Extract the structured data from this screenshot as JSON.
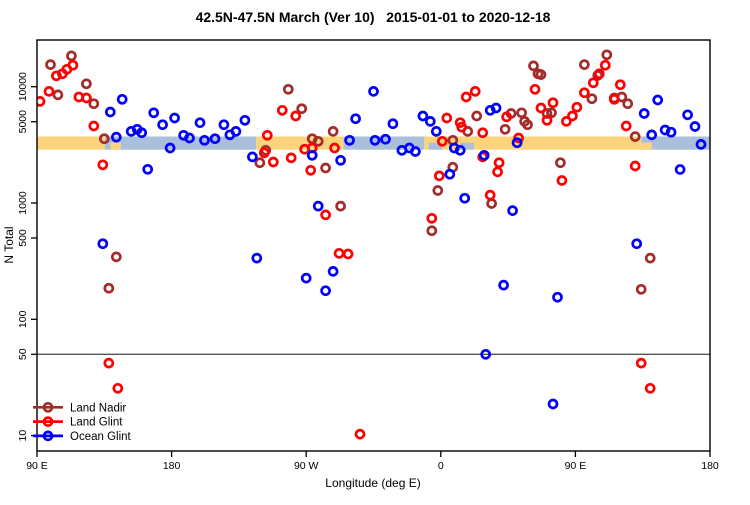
{
  "title": "42.5N-47.5N March (Ver 10)   2015-01-01 to 2020-12-18",
  "chart_data": {
    "type": "scatter",
    "title": "42.5N-47.5N March (Ver 10)   2015-01-01 to 2020-12-18",
    "xlabel": "Longitude (deg E)",
    "ylabel": "N Total",
    "x_axis": {
      "range_deg": [
        90,
        540
      ],
      "ticks": [
        {
          "deg": 90,
          "label": "90 E"
        },
        {
          "deg": 180,
          "label": "180"
        },
        {
          "deg": 270,
          "label": "90 W"
        },
        {
          "deg": 360,
          "label": "0"
        },
        {
          "deg": 450,
          "label": "90 E"
        },
        {
          "deg": 540,
          "label": "180"
        }
      ]
    },
    "y_axis": {
      "scale": "log10",
      "range": [
        7,
        25000
      ],
      "ticks": [
        {
          "value": 10,
          "label": "10"
        },
        {
          "value": 50,
          "label": "50"
        },
        {
          "value": 100,
          "label": "100"
        },
        {
          "value": 500,
          "label": "500"
        },
        {
          "value": 1000,
          "label": "1000"
        },
        {
          "value": 5000,
          "label": "5000"
        },
        {
          "value": 10000,
          "label": "10000"
        }
      ]
    },
    "reference_line": {
      "value": 50,
      "color": "#555555"
    },
    "map_band": {
      "value_top": 3730,
      "value_bottom": 2870,
      "land_color": "#FBD47C",
      "ocean_color": "#A9BFDB",
      "segments": [
        {
          "from": 90,
          "to": 135.5,
          "type": "land"
        },
        {
          "from": 135.5,
          "to": 236.5,
          "type": "ocean"
        },
        {
          "from": 236.5,
          "to": 295,
          "type": "land"
        },
        {
          "from": 295,
          "to": 349,
          "type": "ocean"
        },
        {
          "from": 349,
          "to": 494,
          "type": "land"
        },
        {
          "from": 494,
          "to": 540,
          "type": "ocean"
        }
      ],
      "coast_patches": [
        {
          "from": 139,
          "to": 146,
          "type": "land"
        },
        {
          "from": 352,
          "to": 361,
          "type": "ocean"
        },
        {
          "from": 373,
          "to": 382,
          "type": "ocean"
        },
        {
          "from": 494,
          "to": 501,
          "type": "land"
        }
      ]
    },
    "series": [
      {
        "name": "Land Nadir",
        "color": "#A52A2A",
        "points": [
          [
            99,
            15500
          ],
          [
            113,
            18400
          ],
          [
            123,
            10600
          ],
          [
            104,
            8500
          ],
          [
            128,
            7140
          ],
          [
            135,
            3570
          ],
          [
            258,
            9500
          ],
          [
            267,
            6470
          ],
          [
            288,
            4130
          ],
          [
            243,
            2840
          ],
          [
            239,
            2220
          ],
          [
            274,
            3570
          ],
          [
            278,
            3390
          ],
          [
            283,
            2000
          ],
          [
            293,
            940
          ],
          [
            368,
            2030
          ],
          [
            358,
            1280
          ],
          [
            354,
            578
          ],
          [
            368,
            3460
          ],
          [
            378,
            4130
          ],
          [
            384,
            5600
          ],
          [
            403,
            4300
          ],
          [
            407,
            5880
          ],
          [
            414,
            5970
          ],
          [
            416,
            5030
          ],
          [
            418,
            4710
          ],
          [
            422,
            15100
          ],
          [
            425,
            12900
          ],
          [
            427,
            12700
          ],
          [
            434,
            5970
          ],
          [
            431,
            5880
          ],
          [
            456,
            15500
          ],
          [
            471,
            18800
          ],
          [
            465,
            12500
          ],
          [
            461,
            7890
          ],
          [
            476,
            7990
          ],
          [
            481,
            8150
          ],
          [
            485,
            7140
          ],
          [
            490,
            3720
          ],
          [
            440,
            2220
          ],
          [
            394,
            990
          ],
          [
            143,
            344
          ],
          [
            138,
            185
          ],
          [
            500,
            336
          ],
          [
            494,
            181
          ]
        ]
      },
      {
        "name": "Land Glint",
        "color": "#FF0000",
        "points": [
          [
            114,
            15300
          ],
          [
            110,
            14100
          ],
          [
            107,
            12900
          ],
          [
            103,
            12400
          ],
          [
            98,
            9120
          ],
          [
            92,
            7480
          ],
          [
            118,
            8150
          ],
          [
            123,
            8000
          ],
          [
            128,
            4590
          ],
          [
            134,
            2130
          ],
          [
            254,
            6270
          ],
          [
            263,
            5600
          ],
          [
            244,
            3820
          ],
          [
            242,
            2700
          ],
          [
            248,
            2250
          ],
          [
            260,
            2440
          ],
          [
            269,
            2900
          ],
          [
            274,
            2970
          ],
          [
            273,
            1910
          ],
          [
            289,
            2970
          ],
          [
            283,
            790
          ],
          [
            292,
            369
          ],
          [
            298,
            364
          ],
          [
            364,
            5380
          ],
          [
            359,
            1710
          ],
          [
            354,
            738
          ],
          [
            361,
            3390
          ],
          [
            373,
            4900
          ],
          [
            374,
            4490
          ],
          [
            377,
            8150
          ],
          [
            383,
            9120
          ],
          [
            388,
            4020
          ],
          [
            388,
            2490
          ],
          [
            399,
            2220
          ],
          [
            398,
            1850
          ],
          [
            404,
            5500
          ],
          [
            412,
            3620
          ],
          [
            423,
            9500
          ],
          [
            427,
            6560
          ],
          [
            435,
            7280
          ],
          [
            431,
            5140
          ],
          [
            470,
            15300
          ],
          [
            466,
            12900
          ],
          [
            462,
            10800
          ],
          [
            456,
            8880
          ],
          [
            451,
            6660
          ],
          [
            448,
            5600
          ],
          [
            444,
            5030
          ],
          [
            480,
            10400
          ],
          [
            476,
            7790
          ],
          [
            484,
            4590
          ],
          [
            490,
            2080
          ],
          [
            441,
            1560
          ],
          [
            393,
            1170
          ],
          [
            138,
            42
          ],
          [
            144,
            25.5
          ],
          [
            306,
            10.3
          ],
          [
            494,
            42
          ],
          [
            500,
            25.5
          ]
        ]
      },
      {
        "name": "Ocean Glint",
        "color": "#0000FF",
        "points": [
          [
            147,
            7790
          ],
          [
            139,
            6060
          ],
          [
            143,
            3690
          ],
          [
            153,
            4130
          ],
          [
            157,
            4300
          ],
          [
            160,
            4020
          ],
          [
            168,
            5970
          ],
          [
            174,
            4710
          ],
          [
            182,
            5380
          ],
          [
            188,
            3820
          ],
          [
            192,
            3620
          ],
          [
            199,
            4900
          ],
          [
            179,
            2970
          ],
          [
            164,
            1950
          ],
          [
            134,
            447
          ],
          [
            202,
            3460
          ],
          [
            209,
            3570
          ],
          [
            215,
            4710
          ],
          [
            219,
            3860
          ],
          [
            223,
            4130
          ],
          [
            229,
            5140
          ],
          [
            234,
            2490
          ],
          [
            274,
            2570
          ],
          [
            293,
            2330
          ],
          [
            278,
            940
          ],
          [
            303,
            5310
          ],
          [
            299,
            3460
          ],
          [
            315,
            9120
          ],
          [
            316,
            3460
          ],
          [
            323,
            3540
          ],
          [
            328,
            4810
          ],
          [
            334,
            2840
          ],
          [
            339,
            2970
          ],
          [
            343,
            2770
          ],
          [
            348,
            5600
          ],
          [
            353,
            5030
          ],
          [
            357,
            4130
          ],
          [
            366,
            1770
          ],
          [
            369,
            2970
          ],
          [
            373,
            2840
          ],
          [
            389,
            2570
          ],
          [
            393,
            6270
          ],
          [
            397,
            6560
          ],
          [
            411,
            3300
          ],
          [
            376,
            1100
          ],
          [
            408,
            860
          ],
          [
            496,
            5880
          ],
          [
            505,
            7680
          ],
          [
            501,
            3850
          ],
          [
            510,
            4240
          ],
          [
            514,
            4060
          ],
          [
            525,
            5730
          ],
          [
            530,
            4550
          ],
          [
            534,
            3190
          ],
          [
            520,
            1940
          ],
          [
            491,
            447
          ],
          [
            237,
            336
          ],
          [
            270,
            226
          ],
          [
            288,
            258
          ],
          [
            283,
            176
          ],
          [
            402,
            197
          ],
          [
            438,
            155
          ],
          [
            390,
            50
          ],
          [
            435,
            18.7
          ]
        ]
      }
    ],
    "legend": {
      "position": "bottom-left",
      "items": [
        "Land Nadir",
        "Land Glint",
        "Ocean Glint"
      ]
    }
  }
}
